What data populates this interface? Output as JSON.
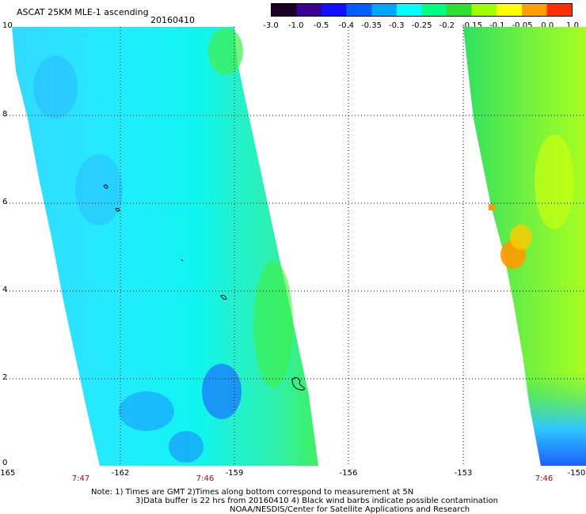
{
  "header": {
    "title": "ASCAT 25KM MLE-1 ascending",
    "date": "20160410"
  },
  "colorbar": {
    "ticks": [
      "-3.0",
      "-1.0",
      "-0.5",
      "-0.4",
      "-0.35",
      "-0.3",
      "-0.25",
      "-0.2",
      "-0.15",
      "-0.1",
      "-0.05",
      "0.0",
      "1.0"
    ],
    "colors": [
      "#1a0022",
      "#3b0090",
      "#1010ff",
      "#0060ff",
      "#00a8ff",
      "#00ffff",
      "#00ff80",
      "#30e030",
      "#a0ff00",
      "#ffff00",
      "#ffa000",
      "#ff3000"
    ]
  },
  "axes": {
    "y_ticks": [
      "10",
      "8",
      "6",
      "4",
      "2",
      "0"
    ],
    "x_ticks": [
      "-165",
      "-162",
      "-159",
      "-156",
      "-153",
      "-150"
    ],
    "time_labels": [
      "7:47",
      "7:46",
      "7:46"
    ]
  },
  "notes": {
    "line1": "Note: 1) Times are GMT 2)Times along bottom correspond to measurement at 5N",
    "line2": "3)Data buffer is 22 hrs from 20160410 4) Black wind barbs indicate possible contamination",
    "line3": "NOAA/NESDIS/Center for Satellite Applications and Research"
  }
}
